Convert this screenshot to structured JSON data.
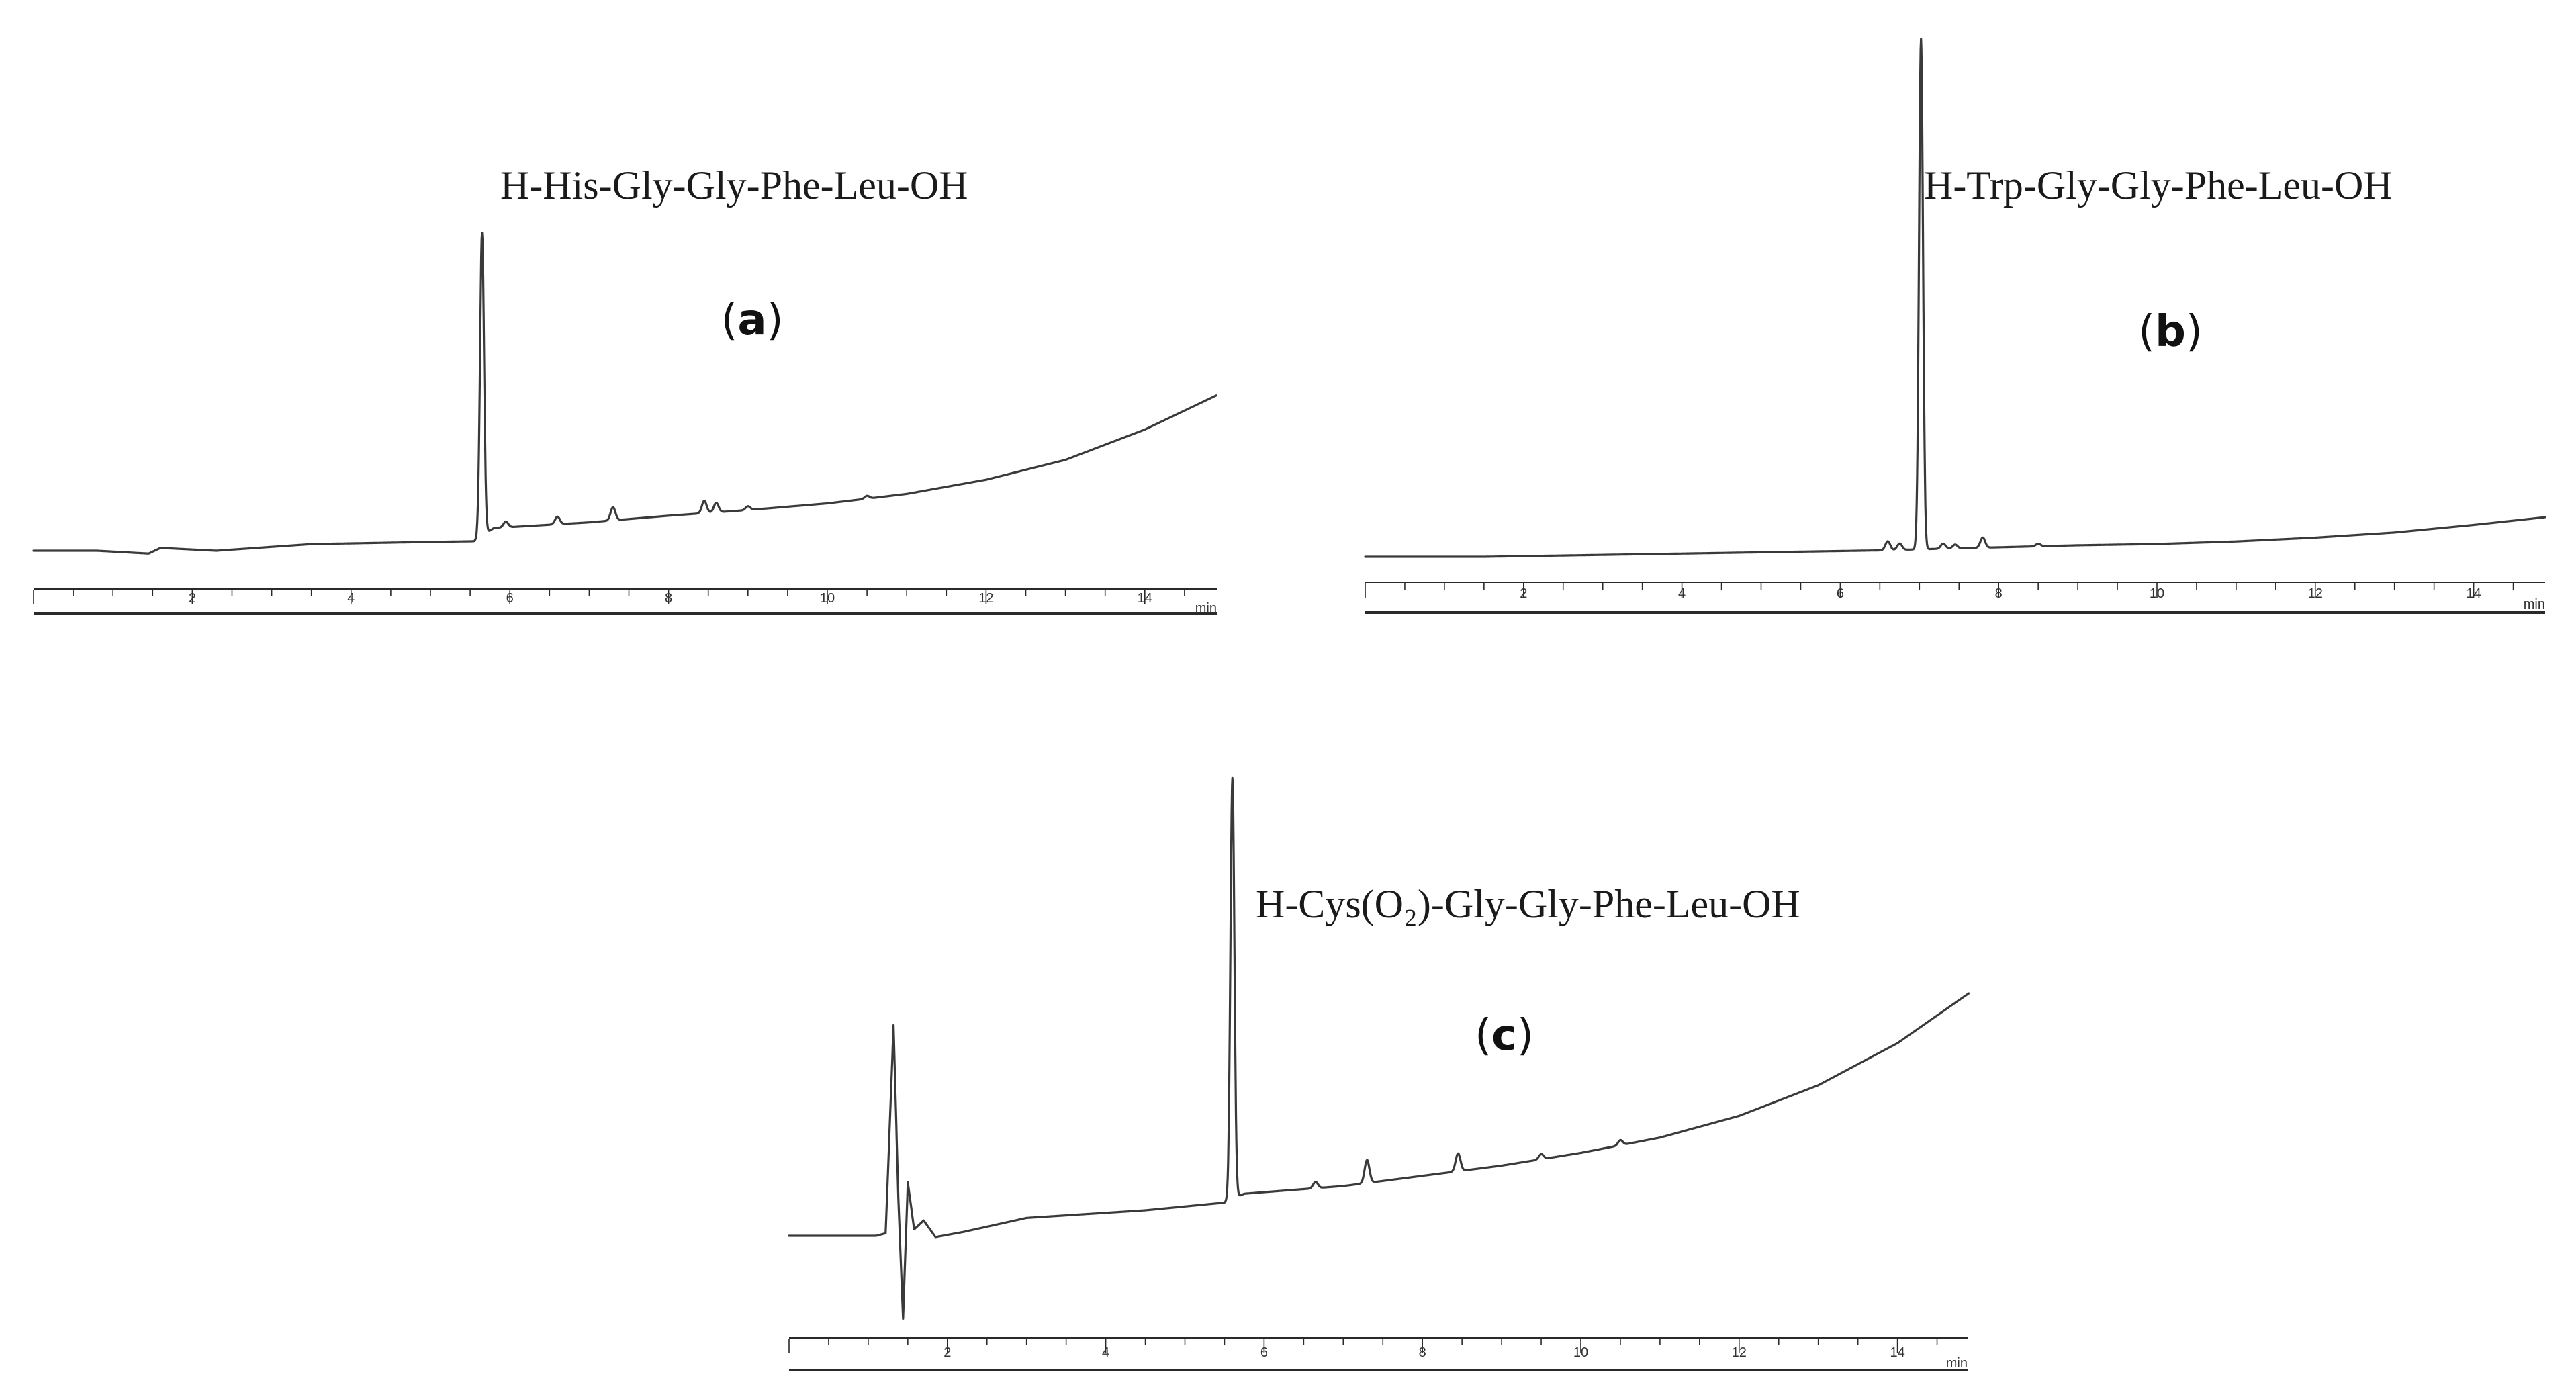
{
  "chart_data": [
    {
      "type": "line",
      "panel": "a",
      "panel_label": "a",
      "peptide_label": "H-His-Gly-Gly-Phe-Leu-OH",
      "x_unit": "min",
      "xlim": [
        0,
        14.9
      ],
      "x_ticks": [
        2,
        4,
        6,
        8,
        10,
        12,
        14
      ],
      "baseline": [
        [
          0,
          0
        ],
        [
          0.8,
          0
        ],
        [
          1.45,
          -0.3
        ],
        [
          1.6,
          0.3
        ],
        [
          2.3,
          0
        ],
        [
          3.5,
          0.7
        ],
        [
          4.8,
          0.9
        ],
        [
          5.55,
          1.0
        ]
      ],
      "peaks": [
        {
          "x": 5.65,
          "height": 32
        },
        {
          "x": 5.95,
          "height": 0.6
        },
        {
          "x": 6.6,
          "height": 0.8
        },
        {
          "x": 7.3,
          "height": 1.4
        },
        {
          "x": 8.45,
          "height": 1.3
        },
        {
          "x": 8.6,
          "height": 1.0
        },
        {
          "x": 9.0,
          "height": 0.4
        },
        {
          "x": 10.5,
          "height": 0.3
        }
      ],
      "tail": [
        [
          5.8,
          2.4
        ],
        [
          7,
          3.0
        ],
        [
          8,
          3.7
        ],
        [
          9,
          4.3
        ],
        [
          10,
          5.0
        ],
        [
          11,
          6.0
        ],
        [
          12,
          7.5
        ],
        [
          13,
          9.6
        ],
        [
          14,
          12.8
        ],
        [
          14.9,
          16.4
        ]
      ]
    },
    {
      "type": "line",
      "panel": "b",
      "panel_label": "b",
      "peptide_label": "H-Trp-Gly-Gly-Phe-Leu-OH",
      "x_unit": "min",
      "xlim": [
        0,
        14.9
      ],
      "x_ticks": [
        2,
        4,
        6,
        8,
        10,
        12,
        14
      ],
      "baseline": [
        [
          0,
          0
        ],
        [
          1.5,
          0
        ],
        [
          4,
          0.25
        ],
        [
          6.5,
          0.5
        ]
      ],
      "peaks": [
        {
          "x": 6.6,
          "height": 0.7
        },
        {
          "x": 6.75,
          "height": 0.5
        },
        {
          "x": 7.02,
          "height": 40
        },
        {
          "x": 7.3,
          "height": 0.4
        },
        {
          "x": 7.45,
          "height": 0.3
        },
        {
          "x": 7.8,
          "height": 0.8
        },
        {
          "x": 8.5,
          "height": 0.2
        }
      ],
      "tail": [
        [
          7.1,
          0.6
        ],
        [
          9,
          0.9
        ],
        [
          10,
          1.0
        ],
        [
          11,
          1.2
        ],
        [
          12,
          1.5
        ],
        [
          13,
          1.9
        ],
        [
          14,
          2.5
        ],
        [
          14.9,
          3.1
        ]
      ]
    },
    {
      "type": "line",
      "panel": "c",
      "panel_label": "c",
      "peptide_label": "H-Cys(O₂)-Gly-Gly-Phe-Leu-OH",
      "x_unit": "min",
      "xlim": [
        0,
        14.9
      ],
      "x_ticks": [
        2,
        4,
        6,
        8,
        10,
        12,
        14
      ],
      "baseline": [
        [
          0,
          0
        ],
        [
          1.1,
          0
        ],
        [
          1.22,
          0.2
        ],
        [
          1.32,
          16.5
        ],
        [
          1.38,
          3
        ],
        [
          1.44,
          -6.5
        ],
        [
          1.5,
          4.2
        ],
        [
          1.58,
          0.5
        ],
        [
          1.7,
          1.2
        ],
        [
          1.85,
          -0.1
        ],
        [
          2.2,
          0.3
        ],
        [
          3,
          1.4
        ],
        [
          4.5,
          2.0
        ],
        [
          5.5,
          2.6
        ]
      ],
      "peaks": [
        {
          "x": 5.6,
          "height": 33
        },
        {
          "x": 6.65,
          "height": 0.5
        },
        {
          "x": 7.3,
          "height": 1.8
        },
        {
          "x": 8.45,
          "height": 1.4
        },
        {
          "x": 9.5,
          "height": 0.4
        },
        {
          "x": 10.5,
          "height": 0.4
        }
      ],
      "tail": [
        [
          5.75,
          3.3
        ],
        [
          7,
          3.9
        ],
        [
          8,
          4.7
        ],
        [
          9,
          5.5
        ],
        [
          10,
          6.5
        ],
        [
          11,
          7.7
        ],
        [
          12,
          9.4
        ],
        [
          13,
          11.8
        ],
        [
          14,
          15.1
        ],
        [
          14.9,
          19.0
        ]
      ]
    }
  ]
}
